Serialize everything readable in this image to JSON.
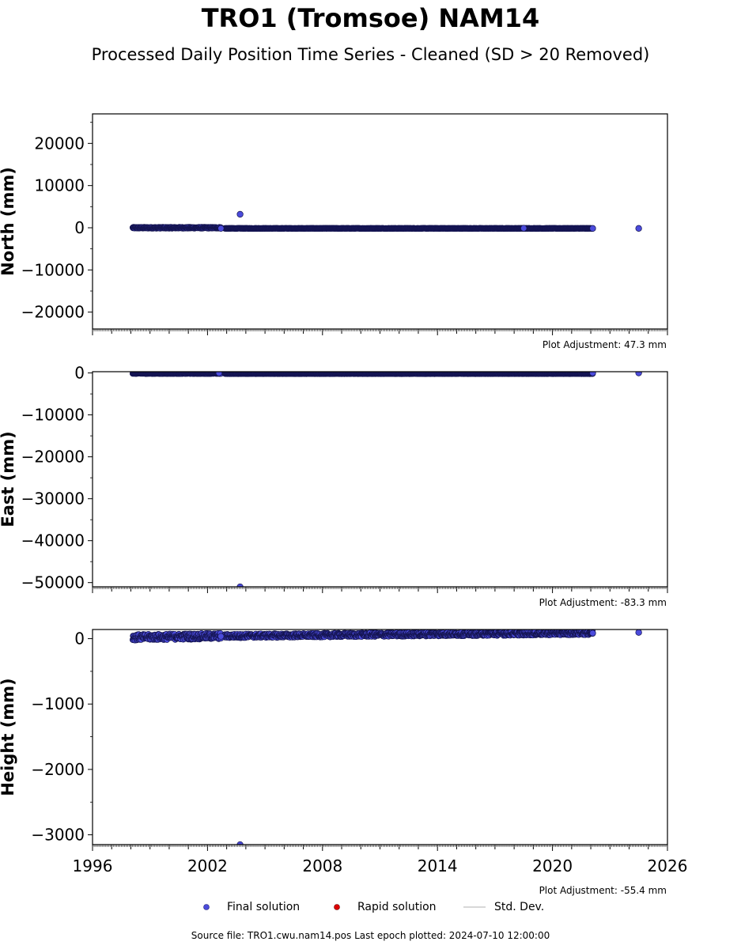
{
  "header": {
    "title": "TRO1 (Tromsoe) NAM14",
    "subtitle": "Processed Daily Position Time Series - Cleaned (SD > 20 Removed)"
  },
  "legend": {
    "final_label": "Final solution",
    "rapid_label": "Rapid solution",
    "std_label": "Std. Dev.",
    "final_color": "#4b4bdc",
    "rapid_color": "#dd0000",
    "std_color": "#cccccc"
  },
  "footer": {
    "source_text": "Source file: TRO1.cwu.nam14.pos  Last epoch plotted: 2024-07-10 12:00:00"
  },
  "chart_data": [
    {
      "type": "scatter",
      "ylabel": "North (mm)",
      "ylim": [
        -24000,
        27000
      ],
      "xlim": [
        1996,
        2026
      ],
      "yticks": [
        -20000,
        -10000,
        0,
        10000,
        20000
      ],
      "ytick_labels": [
        "−20000",
        "−10000",
        "0",
        "10000",
        "20000"
      ],
      "adjustment": "Plot Adjustment: 47.3 mm",
      "segments": [
        {
          "x0": 1998.1,
          "x1": 2002.7,
          "y": 0,
          "spread": 150
        },
        {
          "x0": 2002.9,
          "x1": 2022.1,
          "y": -150,
          "spread": 40
        }
      ],
      "points": [
        {
          "x": 2003.7,
          "y": 3200
        },
        {
          "x": 2002.7,
          "y": -150
        },
        {
          "x": 2022.1,
          "y": -150
        },
        {
          "x": 2024.5,
          "y": -150
        },
        {
          "x": 2018.5,
          "y": -100
        }
      ]
    },
    {
      "type": "scatter",
      "ylabel": "East (mm)",
      "ylim": [
        -51000,
        300
      ],
      "xlim": [
        1996,
        2026
      ],
      "yticks": [
        -50000,
        -40000,
        -30000,
        -20000,
        -10000,
        0
      ],
      "ytick_labels": [
        "−50000",
        "−40000",
        "−30000",
        "−20000",
        "−10000",
        "0"
      ],
      "adjustment": "Plot Adjustment: -83.3 mm",
      "segments": [
        {
          "x0": 1998.1,
          "x1": 2002.7,
          "y": -100,
          "spread": 80
        },
        {
          "x0": 2002.9,
          "x1": 2022.1,
          "y": -150,
          "spread": 60
        }
      ],
      "points": [
        {
          "x": 2003.7,
          "y": -51000
        },
        {
          "x": 2002.6,
          "y": -20
        },
        {
          "x": 2022.1,
          "y": 0
        },
        {
          "x": 2024.5,
          "y": 0
        }
      ]
    },
    {
      "type": "scatter",
      "ylabel": "Height (mm)",
      "xlabel": "",
      "ylim": [
        -3150,
        140
      ],
      "xlim": [
        1996,
        2026
      ],
      "xticks": [
        1996,
        2002,
        2008,
        2014,
        2020,
        2026
      ],
      "xtick_labels": [
        "1996",
        "2002",
        "2008",
        "2014",
        "2020",
        "2026"
      ],
      "yticks": [
        -3000,
        -2000,
        -1000,
        0
      ],
      "ytick_labels": [
        "−3000",
        "−2000",
        "−1000",
        "0"
      ],
      "adjustment": "Plot Adjustment: -55.4 mm",
      "segments": [
        {
          "x0": 1998.1,
          "x1": 2002.7,
          "y0": 20,
          "y1": 40,
          "spread": 45
        },
        {
          "x0": 2002.9,
          "x1": 2022.1,
          "y0": 40,
          "y1": 90,
          "spread": 30
        }
      ],
      "points": [
        {
          "x": 2003.7,
          "y": -3150
        },
        {
          "x": 2002.7,
          "y": 35
        },
        {
          "x": 2022.1,
          "y": 85
        },
        {
          "x": 2024.5,
          "y": 95
        }
      ]
    }
  ]
}
